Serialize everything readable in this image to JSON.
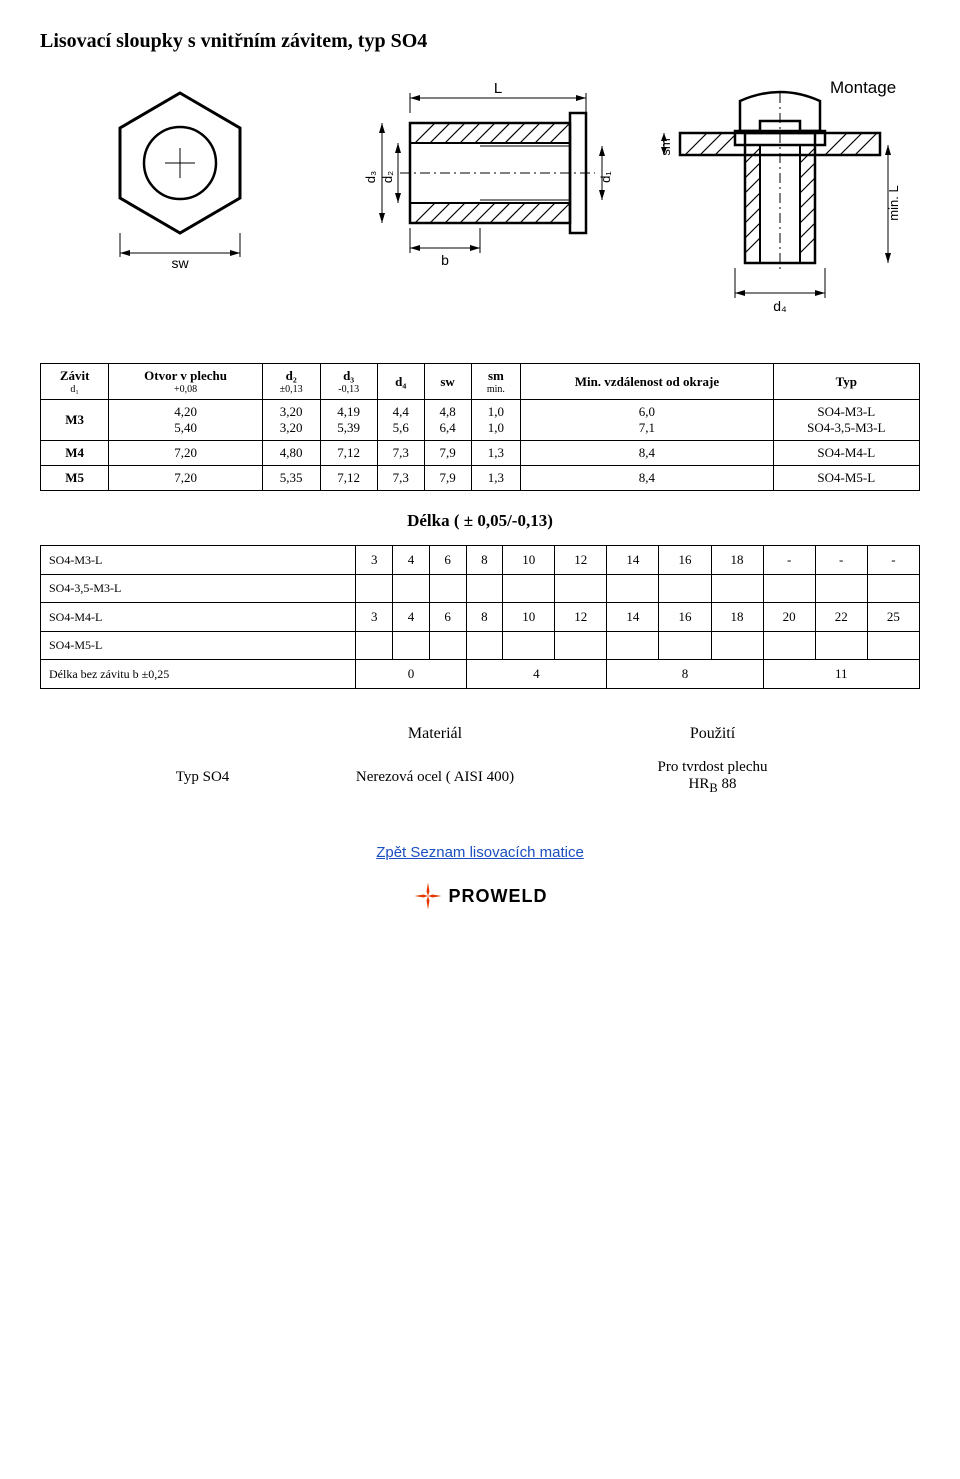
{
  "title": "Lisovací sloupky s vnitřním závitem, typ SO4",
  "diagram_labels": {
    "montage": "Montage",
    "L": "L",
    "b": "b",
    "sw": "sw",
    "d1": "d₁",
    "d2": "d₂",
    "d3": "d₃",
    "d4": "d₄",
    "sm": "sm",
    "minL": "min. L"
  },
  "spec_table": {
    "headers": [
      {
        "main": "Závit",
        "sub": "d₁"
      },
      {
        "main": "Otvor v plechu",
        "sub": "+0,08"
      },
      {
        "main": "d₂",
        "sub": "±0,13"
      },
      {
        "main": "d₃",
        "sub": "-0,13"
      },
      {
        "main": "d₄",
        "sub": ""
      },
      {
        "main": "sw",
        "sub": ""
      },
      {
        "main": "sm",
        "sub": "min."
      },
      {
        "main": "Min. vzdálenost od okraje",
        "sub": ""
      },
      {
        "main": "Typ",
        "sub": ""
      }
    ],
    "rows": [
      [
        "M3",
        "4,20\n5,40",
        "3,20\n3,20",
        "4,19\n5,39",
        "4,4\n5,6",
        "4,8\n6,4",
        "1,0\n1,0",
        "6,0\n7,1",
        "SO4-M3-L\nSO4-3,5-M3-L"
      ],
      [
        "M4",
        "7,20",
        "4,80",
        "7,12",
        "7,3",
        "7,9",
        "1,3",
        "8,4",
        "SO4-M4-L"
      ],
      [
        "M5",
        "7,20",
        "5,35",
        "7,12",
        "7,3",
        "7,9",
        "1,3",
        "8,4",
        "SO4-M5-L"
      ]
    ]
  },
  "lengths_title": "Délka ( ± 0,05/-0,13)",
  "lengths_table": {
    "rows": [
      {
        "label": "SO4-M3-L",
        "values": [
          "3",
          "4",
          "6",
          "8",
          "10",
          "12",
          "14",
          "16",
          "18",
          "-",
          "-",
          "-"
        ]
      },
      {
        "label": "SO4-3,5-M3-L",
        "values": [
          "",
          "",
          "",
          "",
          "",
          "",
          "",
          "",
          "",
          "",
          "",
          ""
        ]
      },
      {
        "label": "SO4-M4-L",
        "values": [
          "3",
          "4",
          "6",
          "8",
          "10",
          "12",
          "14",
          "16",
          "18",
          "20",
          "22",
          "25"
        ]
      },
      {
        "label": "SO4-M5-L",
        "values": [
          "",
          "",
          "",
          "",
          "",
          "",
          "",
          "",
          "",
          "",
          "",
          ""
        ]
      },
      {
        "label": "Délka bez závitu b ±0,25",
        "spans": [
          {
            "text": "0",
            "colspan": 3
          },
          {
            "text": "4",
            "colspan": 3
          },
          {
            "text": "8",
            "colspan": 3
          },
          {
            "text": "11",
            "colspan": 3
          }
        ]
      }
    ]
  },
  "material_table": {
    "header_material": "Materiál",
    "header_use": "Použití",
    "type_label": "Typ SO4",
    "material": "Nerezová ocel ( AISI 400)",
    "use": "Pro tvrdost plechu HR_B 88",
    "use_line1": "Pro tvrdost plechu",
    "use_line2": "HRB 88"
  },
  "back_link": "Zpět Seznam lisovacích matice",
  "logo_text": "PROWELD",
  "colors": {
    "text": "#000000",
    "border": "#000000",
    "link": "#1a4fc0",
    "logo_star": "#e63900",
    "background": "#ffffff"
  }
}
